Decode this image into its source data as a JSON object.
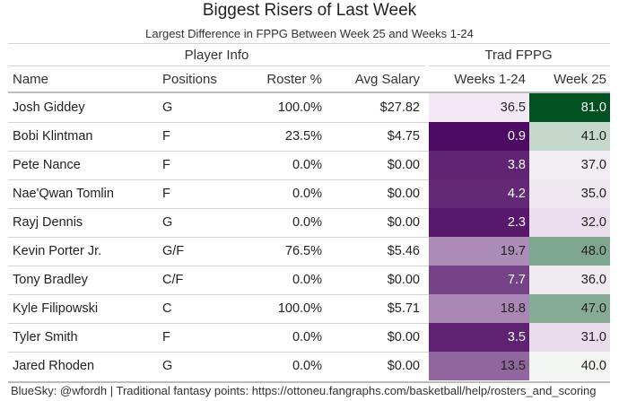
{
  "title": "Biggest Risers of Last Week",
  "subtitle": "Largest Difference in FPPG Between Week 25 and Weeks 1-24",
  "groups": {
    "player_info": "Player Info",
    "trad_fppg": "Trad FPPG"
  },
  "columns": {
    "name": "Name",
    "positions": "Positions",
    "roster": "Roster %",
    "salary": "Avg Salary",
    "weeks": "Weeks 1-24",
    "week25": "Week 25"
  },
  "colors": {
    "weeks_low": "#4d0a63",
    "weeks_high": "#f2e9f4",
    "week25_low": "#eadbed",
    "week25_mid": "#f4f6f4",
    "week25_high": "#005020"
  },
  "chart_data": {
    "type": "table",
    "title": "Biggest Risers of Last Week",
    "subtitle": "Largest Difference in FPPG Between Week 25 and Weeks 1-24",
    "columns": [
      "Name",
      "Positions",
      "Roster %",
      "Avg Salary",
      "Weeks 1-24",
      "Week 25"
    ],
    "rows": [
      {
        "name": "Josh Giddey",
        "positions": "G",
        "roster": "100.0%",
        "salary": "$27.82",
        "weeks": 36.5,
        "week25": 81.0,
        "weeks_text": "36.5",
        "week25_text": "81.0"
      },
      {
        "name": "Bobi Klintman",
        "positions": "F",
        "roster": "23.5%",
        "salary": "$4.75",
        "weeks": 0.9,
        "week25": 41.0,
        "weeks_text": "0.9",
        "week25_text": "41.0"
      },
      {
        "name": "Pete Nance",
        "positions": "F",
        "roster": "0.0%",
        "salary": "$0.00",
        "weeks": 3.8,
        "week25": 37.0,
        "weeks_text": "3.8",
        "week25_text": "37.0"
      },
      {
        "name": "Nae'Qwan Tomlin",
        "positions": "F",
        "roster": "0.0%",
        "salary": "$0.00",
        "weeks": 4.2,
        "week25": 35.0,
        "weeks_text": "4.2",
        "week25_text": "35.0"
      },
      {
        "name": "Rayj Dennis",
        "positions": "G",
        "roster": "0.0%",
        "salary": "$0.00",
        "weeks": 2.3,
        "week25": 32.0,
        "weeks_text": "2.3",
        "week25_text": "32.0"
      },
      {
        "name": "Kevin Porter Jr.",
        "positions": "G/F",
        "roster": "76.5%",
        "salary": "$5.46",
        "weeks": 19.7,
        "week25": 48.0,
        "weeks_text": "19.7",
        "week25_text": "48.0"
      },
      {
        "name": "Tony Bradley",
        "positions": "C/F",
        "roster": "0.0%",
        "salary": "$0.00",
        "weeks": 7.7,
        "week25": 36.0,
        "weeks_text": "7.7",
        "week25_text": "36.0"
      },
      {
        "name": "Kyle Filipowski",
        "positions": "C",
        "roster": "100.0%",
        "salary": "$5.71",
        "weeks": 18.8,
        "week25": 47.0,
        "weeks_text": "18.8",
        "week25_text": "47.0"
      },
      {
        "name": "Tyler Smith",
        "positions": "F",
        "roster": "0.0%",
        "salary": "$0.00",
        "weeks": 3.5,
        "week25": 31.0,
        "weeks_text": "3.5",
        "week25_text": "31.0"
      },
      {
        "name": "Jared Rhoden",
        "positions": "G",
        "roster": "0.0%",
        "salary": "$0.00",
        "weeks": 13.5,
        "week25": 40.0,
        "weeks_text": "13.5",
        "week25_text": "40.0"
      }
    ]
  },
  "footer": "BlueSky: @wfordh | Traditional fantasy points: https://ottoneu.fangraphs.com/basketball/help/rosters_and_scoring"
}
